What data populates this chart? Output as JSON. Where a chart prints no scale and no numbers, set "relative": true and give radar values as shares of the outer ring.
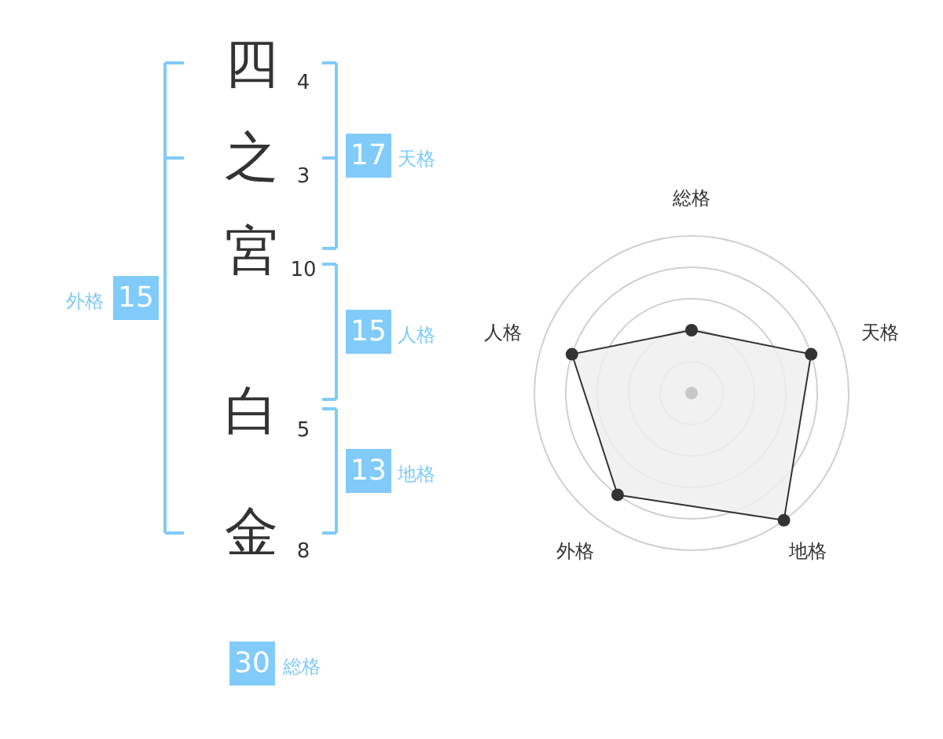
{
  "chart_data": [
    {
      "type": "other",
      "categories": [
        "四",
        "之",
        "宮",
        null,
        "白",
        "金"
      ],
      "values": [
        4,
        3,
        10,
        null,
        5,
        8
      ],
      "data_labels": true,
      "color": "#80cbfa",
      "annotations": [
        "17",
        "天格",
        "15",
        "人格",
        "13",
        "地格",
        "15",
        "外格",
        "30",
        "総格"
      ]
    },
    {
      "type": "radar",
      "categories": [
        "総格",
        "天格",
        "地格",
        "外格",
        "人格"
      ],
      "relative": true,
      "grid": true,
      "marker": "circle",
      "series": [
        {
          "values": [
            0.4,
            0.8,
            1,
            0.8,
            0.8
          ],
          "color": "#333333"
        }
      ]
    }
  ]
}
